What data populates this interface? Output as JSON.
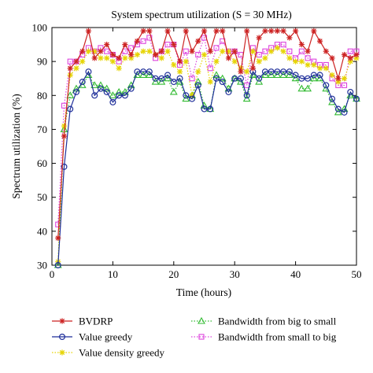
{
  "chart_data": {
    "type": "line",
    "title": "System spectrum utilization (S = 30 MHz)",
    "xlabel": "Time (hours)",
    "ylabel": "Spectrum utilization (%)",
    "xlim": [
      0,
      50
    ],
    "ylim": [
      30,
      100
    ],
    "xticks": [
      0,
      10,
      20,
      30,
      40,
      50
    ],
    "yticks": [
      30,
      40,
      50,
      60,
      70,
      80,
      90,
      100
    ],
    "grid": false,
    "legend_position": "bottom",
    "x": [
      1,
      2,
      3,
      4,
      5,
      6,
      7,
      8,
      9,
      10,
      11,
      12,
      13,
      14,
      15,
      16,
      17,
      18,
      19,
      20,
      21,
      22,
      23,
      24,
      25,
      26,
      27,
      28,
      29,
      30,
      31,
      32,
      33,
      34,
      35,
      36,
      37,
      38,
      39,
      40,
      41,
      42,
      43,
      44,
      45,
      46,
      47,
      48,
      49,
      50
    ],
    "series": [
      {
        "name": "BVDRP",
        "color": "#cc2222",
        "marker": "star",
        "linestyle": "solid",
        "values": [
          38,
          68,
          88,
          90,
          93,
          99,
          91,
          93,
          95,
          92,
          91,
          95,
          92,
          96,
          99,
          99,
          92,
          93,
          99,
          95,
          90,
          99,
          93,
          96,
          99,
          93,
          99,
          99,
          91,
          93,
          87,
          99,
          88,
          97,
          99,
          99,
          99,
          99,
          97,
          99,
          95,
          93,
          99,
          96,
          93,
          91,
          85,
          92,
          91,
          92
        ]
      },
      {
        "name": "Value greedy",
        "color": "#1f2f9a",
        "marker": "circle",
        "linestyle": "solid",
        "values": [
          30,
          59,
          76,
          81,
          84,
          87,
          80,
          82,
          81,
          78,
          80,
          80,
          82,
          87,
          87,
          87,
          85,
          85,
          86,
          84,
          85,
          80,
          79,
          83,
          76,
          76,
          85,
          84,
          81,
          85,
          85,
          80,
          87,
          85,
          87,
          87,
          87,
          87,
          87,
          86,
          85,
          85,
          86,
          86,
          83,
          79,
          76,
          75,
          81,
          79
        ]
      },
      {
        "name": "Value density greedy",
        "color": "#e6d400",
        "marker": "star",
        "linestyle": "dotted",
        "values": [
          31,
          71,
          86,
          88,
          90,
          93,
          93,
          91,
          91,
          90,
          88,
          91,
          91,
          92,
          93,
          93,
          92,
          91,
          93,
          89,
          87,
          90,
          80,
          87,
          92,
          84,
          90,
          93,
          93,
          90,
          88,
          87,
          93,
          90,
          91,
          93,
          94,
          93,
          91,
          90,
          90,
          89,
          89,
          88,
          88,
          86,
          84,
          85,
          90,
          91
        ]
      },
      {
        "name": "Bandwidth from big to small",
        "color": "#33bb33",
        "marker": "triangle",
        "linestyle": "dotted",
        "values": [
          30,
          70,
          80,
          82,
          83,
          86,
          83,
          83,
          82,
          80,
          81,
          81,
          83,
          86,
          86,
          86,
          84,
          84,
          85,
          81,
          84,
          79,
          80,
          84,
          77,
          76,
          86,
          85,
          82,
          85,
          84,
          79,
          86,
          84,
          86,
          86,
          86,
          86,
          86,
          85,
          82,
          82,
          85,
          85,
          82,
          78,
          75,
          76,
          80,
          79
        ]
      },
      {
        "name": "Bandwidth from small to big",
        "color": "#dd44dd",
        "marker": "square",
        "linestyle": "dotted",
        "values": [
          42,
          77,
          90,
          90,
          92,
          94,
          93,
          94,
          93,
          92,
          90,
          93,
          94,
          95,
          96,
          97,
          91,
          93,
          95,
          95,
          89,
          93,
          85,
          92,
          97,
          88,
          94,
          96,
          93,
          93,
          92,
          83,
          94,
          92,
          93,
          94,
          95,
          95,
          93,
          91,
          93,
          91,
          90,
          89,
          89,
          85,
          83,
          83,
          93,
          93
        ]
      }
    ]
  }
}
